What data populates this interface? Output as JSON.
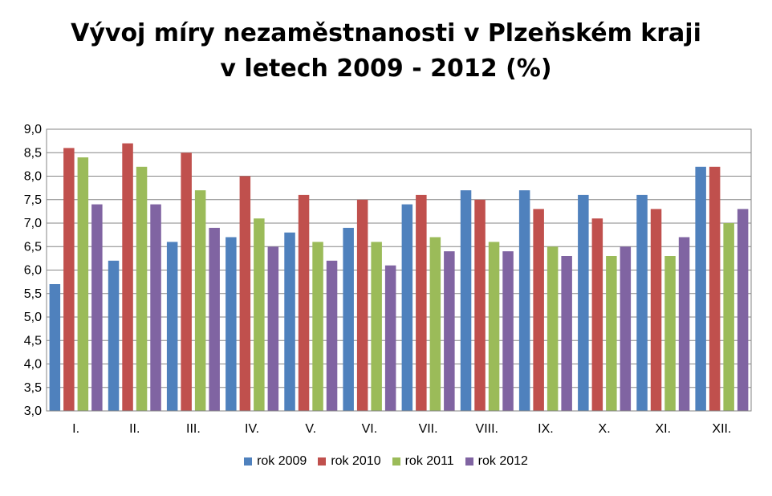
{
  "chart_data": {
    "type": "bar",
    "title": "Vývoj míry nezaměstnanosti v Plzeňském kraji v letech 2009 - 2012 (%)",
    "title_lines": [
      "Vývoj míry nezaměstnanosti v Plzeňském kraji",
      "v letech 2009 - 2012 (%)"
    ],
    "xlabel": "",
    "ylabel": "",
    "ylim": [
      3.0,
      9.0
    ],
    "ytick_step": 0.5,
    "yticks": [
      "3,0",
      "3,5",
      "4,0",
      "4,5",
      "5,0",
      "5,5",
      "6,0",
      "6,5",
      "7,0",
      "7,5",
      "8,0",
      "8,5",
      "9,0"
    ],
    "grid": true,
    "legend_position": "bottom",
    "categories": [
      "I.",
      "II.",
      "III.",
      "IV.",
      "V.",
      "VI.",
      "VII.",
      "VIII.",
      "IX.",
      "X.",
      "XI.",
      "XII."
    ],
    "series": [
      {
        "name": "rok 2009",
        "color": "#4F81BD",
        "values": [
          5.7,
          6.2,
          6.6,
          6.7,
          6.8,
          6.9,
          7.4,
          7.7,
          7.7,
          7.6,
          7.6,
          8.2
        ]
      },
      {
        "name": "rok 2010",
        "color": "#C0504D",
        "values": [
          8.6,
          8.7,
          8.5,
          8.0,
          7.6,
          7.5,
          7.6,
          7.5,
          7.3,
          7.1,
          7.3,
          8.2
        ]
      },
      {
        "name": "rok 2011",
        "color": "#9BBB59",
        "values": [
          8.4,
          8.2,
          7.7,
          7.1,
          6.6,
          6.6,
          6.7,
          6.6,
          6.5,
          6.3,
          6.3,
          7.0
        ]
      },
      {
        "name": "rok 2012",
        "color": "#8064A2",
        "values": [
          7.4,
          7.4,
          6.9,
          6.5,
          6.2,
          6.1,
          6.4,
          6.4,
          6.3,
          6.5,
          6.7,
          7.3
        ]
      }
    ]
  }
}
